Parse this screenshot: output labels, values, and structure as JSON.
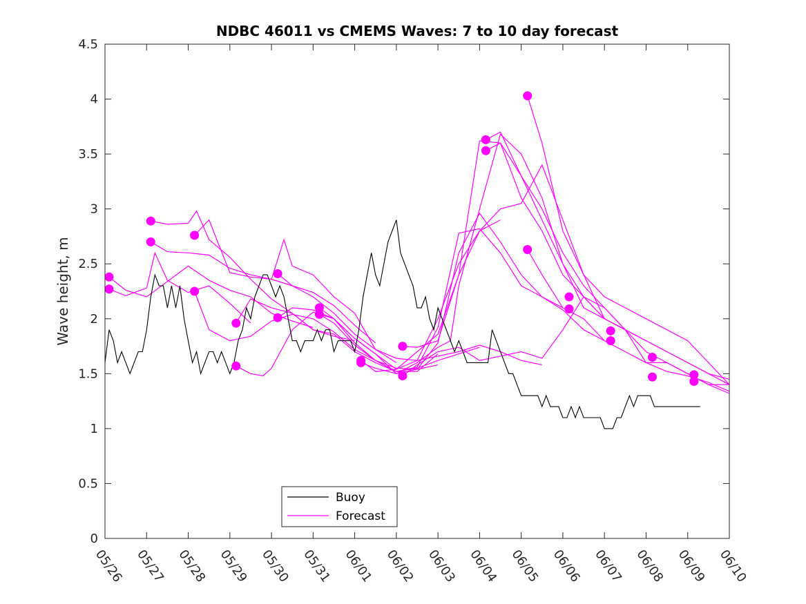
{
  "chart_data": {
    "type": "line",
    "title": "NDBC 46011 vs CMEMS Waves: 7 to 10 day forecast",
    "xlabel": "",
    "ylabel": "Wave height, m",
    "xlim": [
      "05/26",
      "06/10"
    ],
    "ylim": [
      0,
      4.5
    ],
    "yticks": [
      "0",
      "0.5",
      "1",
      "1.5",
      "2",
      "2.5",
      "3",
      "3.5",
      "4",
      "4.5"
    ],
    "xticks": [
      "05/26",
      "05/27",
      "05/28",
      "05/29",
      "05/30",
      "05/31",
      "06/01",
      "06/02",
      "06/03",
      "06/04",
      "06/05",
      "06/06",
      "06/07",
      "06/08",
      "06/09",
      "06/10"
    ],
    "grid": false,
    "legend": {
      "position": "bottom-center",
      "entries": [
        "Buoy",
        "Forecast"
      ]
    },
    "colors": {
      "Buoy": "#000000",
      "Forecast": "#ff00ff"
    },
    "series": [
      {
        "name": "Buoy",
        "x_days_since_0526": [
          0.0,
          0.1,
          0.2,
          0.3,
          0.4,
          0.5,
          0.6,
          0.7,
          0.8,
          0.9,
          1.0,
          1.1,
          1.2,
          1.3,
          1.4,
          1.5,
          1.6,
          1.7,
          1.8,
          1.9,
          2.0,
          2.1,
          2.2,
          2.3,
          2.4,
          2.5,
          2.6,
          2.7,
          2.8,
          2.9,
          3.0,
          3.1,
          3.2,
          3.3,
          3.4,
          3.5,
          3.6,
          3.7,
          3.8,
          3.9,
          4.0,
          4.1,
          4.2,
          4.3,
          4.4,
          4.5,
          4.6,
          4.7,
          4.8,
          4.9,
          5.0,
          5.1,
          5.2,
          5.3,
          5.4,
          5.5,
          5.6,
          5.7,
          5.8,
          5.9,
          6.0,
          6.1,
          6.2,
          6.3,
          6.4,
          6.5,
          6.6,
          6.7,
          6.8,
          6.9,
          7.0,
          7.1,
          7.2,
          7.3,
          7.4,
          7.5,
          7.6,
          7.7,
          7.8,
          7.9,
          8.0,
          8.1,
          8.2,
          8.3,
          8.4,
          8.5,
          8.6,
          8.7,
          8.8,
          8.9,
          9.0,
          9.1,
          9.2,
          9.3,
          9.4,
          9.5,
          9.6,
          9.7,
          9.8,
          9.9,
          10.0,
          10.1,
          10.2,
          10.3,
          10.4,
          10.5,
          10.6,
          10.7,
          10.8,
          10.9,
          11.0,
          11.1,
          11.2,
          11.3,
          11.4,
          11.5,
          11.6,
          11.7,
          11.8,
          11.9,
          12.0,
          12.1,
          12.2,
          12.3,
          12.4,
          12.5,
          12.6,
          12.7,
          12.8,
          12.9,
          13.0,
          13.1,
          13.2,
          13.3,
          13.4,
          13.5,
          13.6,
          13.7,
          13.8,
          13.9,
          14.0,
          14.1,
          14.2,
          14.3
        ],
        "values": [
          1.6,
          1.9,
          1.8,
          1.6,
          1.7,
          1.6,
          1.5,
          1.6,
          1.7,
          1.7,
          1.9,
          2.2,
          2.4,
          2.3,
          2.3,
          2.1,
          2.3,
          2.1,
          2.3,
          2.0,
          1.8,
          1.6,
          1.7,
          1.5,
          1.6,
          1.7,
          1.7,
          1.6,
          1.7,
          1.6,
          1.5,
          1.6,
          1.8,
          1.9,
          2.1,
          2.0,
          2.2,
          2.3,
          2.4,
          2.4,
          2.3,
          2.2,
          2.3,
          2.2,
          2.0,
          1.8,
          1.8,
          1.7,
          1.8,
          1.8,
          1.8,
          1.9,
          1.8,
          1.9,
          1.9,
          1.7,
          1.8,
          1.8,
          1.8,
          1.8,
          1.7,
          1.9,
          2.2,
          2.4,
          2.6,
          2.4,
          2.3,
          2.5,
          2.7,
          2.8,
          2.9,
          2.6,
          2.5,
          2.4,
          2.3,
          2.1,
          2.1,
          2.2,
          2.0,
          1.9,
          2.1,
          2.0,
          1.9,
          1.8,
          1.7,
          1.8,
          1.7,
          1.6,
          1.6,
          1.6,
          1.6,
          1.6,
          1.6,
          1.9,
          1.8,
          1.7,
          1.6,
          1.5,
          1.5,
          1.4,
          1.3,
          1.3,
          1.3,
          1.3,
          1.3,
          1.2,
          1.3,
          1.2,
          1.2,
          1.2,
          1.1,
          1.1,
          1.2,
          1.1,
          1.2,
          1.1,
          1.1,
          1.1,
          1.1,
          1.1,
          1.0,
          1.0,
          1.0,
          1.1,
          1.1,
          1.2,
          1.3,
          1.2,
          1.3,
          1.3,
          1.3,
          1.3,
          1.2,
          1.2,
          1.2,
          1.2,
          1.2,
          1.2,
          1.2,
          1.2,
          1.2,
          1.2,
          1.2,
          1.2
        ]
      },
      {
        "name": "Forecast",
        "runs": [
          {
            "x_days_since_0526": [
              0.1,
              0.5,
              1.0,
              1.5,
              2.0,
              2.5,
              3.0,
              3.5,
              4.0,
              4.5,
              5.0
            ],
            "values": [
              2.38,
              2.26,
              2.2,
              2.34,
              2.48,
              2.35,
              2.26,
              2.2,
              2.05,
              1.98,
              1.92
            ]
          },
          {
            "x_days_since_0526": [
              0.1,
              0.5,
              1.0,
              1.2,
              1.5,
              2.0,
              2.5,
              3.0,
              3.5
            ],
            "values": [
              2.27,
              2.21,
              2.28,
              2.6,
              2.35,
              2.24,
              2.3,
              2.14,
              1.96
            ]
          },
          {
            "x_days_since_0526": [
              1.1,
              1.5,
              2.0,
              2.2,
              2.5,
              3.0,
              3.5,
              4.0,
              4.5,
              5.0,
              5.5,
              6.0
            ],
            "values": [
              2.89,
              2.86,
              2.87,
              2.98,
              2.72,
              2.56,
              2.36,
              2.18,
              2.05,
              1.9,
              1.84,
              1.8
            ]
          },
          {
            "x_days_since_0526": [
              1.1,
              1.5,
              2.0,
              2.5,
              3.0,
              3.5,
              4.0,
              4.5,
              5.0,
              5.5,
              6.0,
              6.5
            ],
            "values": [
              2.7,
              2.61,
              2.6,
              2.58,
              2.46,
              2.4,
              2.36,
              2.3,
              2.24,
              2.12,
              1.94,
              1.78
            ]
          },
          {
            "x_days_since_0526": [
              2.15,
              2.5,
              3.0,
              3.5,
              4.0,
              4.3,
              4.5,
              5.0,
              5.5,
              6.0,
              6.5,
              7.0
            ],
            "values": [
              2.76,
              2.9,
              2.42,
              2.38,
              2.36,
              2.72,
              2.48,
              2.4,
              2.2,
              2.05,
              1.72,
              1.6
            ]
          },
          {
            "x_days_since_0526": [
              2.15,
              2.5,
              3.0,
              3.5,
              4.0,
              4.5,
              5.0,
              5.5,
              6.0,
              6.5,
              7.0,
              7.5,
              8.0
            ],
            "values": [
              2.25,
              1.9,
              1.8,
              1.84,
              1.98,
              2.04,
              2.0,
              1.88,
              1.72,
              1.62,
              1.55,
              1.54,
              1.58
            ]
          },
          {
            "x_days_since_0526": [
              3.15,
              3.5,
              4.0,
              4.5,
              5.0,
              5.5,
              6.0,
              6.5,
              7.0,
              7.5,
              8.0,
              8.5,
              9.0
            ],
            "values": [
              1.96,
              2.18,
              2.1,
              2.05,
              1.9,
              1.86,
              1.7,
              1.6,
              1.52,
              1.55,
              1.62,
              1.68,
              1.74
            ]
          },
          {
            "x_days_since_0526": [
              3.15,
              3.5,
              3.8,
              4.0,
              4.5,
              5.0,
              5.5,
              6.0,
              6.5,
              7.0,
              7.5,
              8.0
            ],
            "values": [
              1.57,
              1.5,
              1.48,
              1.55,
              1.9,
              2.06,
              2.0,
              1.78,
              1.62,
              1.52,
              1.52,
              1.68
            ]
          },
          {
            "x_days_since_0526": [
              4.15,
              4.5,
              5.0,
              5.5,
              6.0,
              6.5,
              7.0,
              7.5,
              8.0,
              8.5,
              9.0,
              9.5,
              10.0,
              10.5
            ],
            "values": [
              2.41,
              2.3,
              2.2,
              2.05,
              1.86,
              1.72,
              1.64,
              1.62,
              1.66,
              1.7,
              1.76,
              1.7,
              1.62,
              1.58
            ]
          },
          {
            "x_days_since_0526": [
              4.15,
              4.5,
              5.0,
              5.5,
              6.0,
              6.5,
              7.0,
              7.5,
              8.0,
              8.5,
              9.0,
              9.5
            ],
            "values": [
              2.01,
              2.1,
              2.08,
              2.0,
              1.82,
              1.68,
              1.54,
              1.62,
              2.0,
              2.5,
              2.8,
              2.9
            ]
          },
          {
            "x_days_since_0526": [
              5.15,
              5.5,
              6.0,
              6.5,
              7.0,
              7.5,
              8.0,
              8.5,
              9.0,
              9.5,
              10.0,
              10.5,
              11.0
            ],
            "values": [
              2.1,
              2.0,
              1.82,
              1.68,
              1.5,
              1.54,
              1.78,
              2.6,
              2.96,
              2.7,
              2.4,
              2.2,
              2.1
            ]
          },
          {
            "x_days_since_0526": [
              5.15,
              5.5,
              6.0,
              6.5,
              7.0,
              7.5,
              8.0,
              8.5,
              9.0,
              9.5,
              10.0,
              10.5,
              11.0,
              11.5,
              12.0
            ],
            "values": [
              2.04,
              1.96,
              1.76,
              1.62,
              1.52,
              1.56,
              1.92,
              2.78,
              2.82,
              2.6,
              2.3,
              2.2,
              2.08,
              1.9,
              1.8
            ]
          },
          {
            "x_days_since_0526": [
              6.15,
              6.5,
              7.0,
              7.5,
              8.0,
              8.3,
              8.5,
              9.0,
              9.5,
              10.0,
              10.5,
              11.0,
              11.5,
              12.0
            ],
            "values": [
              1.6,
              1.55,
              1.5,
              1.6,
              1.74,
              1.8,
              2.3,
              3.0,
              3.68,
              3.5,
              3.1,
              2.5,
              2.1,
              2.0
            ]
          },
          {
            "x_days_since_0526": [
              6.15,
              6.5,
              7.0,
              7.5,
              8.0,
              8.5,
              9.0,
              9.5,
              10.0,
              10.5,
              11.0,
              11.5,
              12.0,
              12.5
            ],
            "values": [
              1.62,
              1.52,
              1.54,
              1.7,
              1.86,
              2.4,
              3.62,
              3.6,
              3.1,
              2.8,
              2.4,
              2.2,
              2.0,
              1.9
            ]
          },
          {
            "x_days_since_0526": [
              7.15,
              7.5,
              8.0,
              8.5,
              9.0,
              9.5,
              10.0,
              10.5,
              11.0,
              11.5,
              12.0,
              12.5,
              13.0,
              13.5,
              14.0,
              14.5,
              15.0
            ],
            "values": [
              1.75,
              1.74,
              1.8,
              2.4,
              2.8,
              3.0,
              3.05,
              3.4,
              2.9,
              2.4,
              2.0,
              1.9,
              1.7,
              1.6,
              1.5,
              1.4,
              1.4
            ]
          },
          {
            "x_days_since_0526": [
              7.15,
              7.5,
              8.0,
              8.5,
              9.0,
              9.5,
              10.0,
              10.5,
              11.0,
              11.5,
              12.0,
              12.5,
              13.0,
              13.5,
              14.0,
              14.5,
              15.0
            ],
            "values": [
              1.48,
              1.58,
              1.7,
              1.74,
              1.62,
              1.66,
              1.7,
              1.64,
              1.9,
              2.2,
              2.1,
              1.9,
              1.6,
              1.6,
              1.5,
              1.4,
              1.32
            ]
          },
          {
            "x_days_since_0526": [
              9.15,
              9.5,
              10.0,
              10.5,
              11.0,
              11.5,
              12.0,
              12.5,
              13.0,
              13.5,
              14.0,
              14.5,
              15.0
            ],
            "values": [
              3.63,
              3.7,
              3.3,
              2.9,
              2.5,
              2.2,
              2.0,
              1.9,
              1.8,
              1.7,
              1.6,
              1.5,
              1.45
            ]
          },
          {
            "x_days_since_0526": [
              9.15,
              9.5,
              10.0,
              10.5,
              11.0,
              11.5,
              12.0,
              12.5,
              13.0,
              13.5,
              14.0,
              14.5,
              15.0
            ],
            "values": [
              3.53,
              3.6,
              3.3,
              3.0,
              2.6,
              2.3,
              2.1,
              1.9,
              1.8,
              1.7,
              1.6,
              1.5,
              1.4
            ]
          },
          {
            "x_days_since_0526": [
              10.15,
              10.5,
              11.0,
              11.5,
              12.0,
              12.5,
              13.0,
              13.5,
              14.0,
              14.5,
              15.0
            ],
            "values": [
              4.03,
              3.6,
              2.8,
              2.4,
              2.2,
              2.1,
              2.0,
              1.9,
              1.8,
              1.6,
              1.4
            ]
          },
          {
            "x_days_since_0526": [
              10.15,
              10.5,
              11.0,
              11.5,
              12.0,
              12.5,
              13.0,
              13.5,
              14.0,
              14.5,
              15.0
            ],
            "values": [
              2.63,
              2.4,
              2.1,
              2.0,
              1.8,
              1.7,
              1.6,
              1.52,
              1.48,
              1.42,
              1.34
            ]
          }
        ],
        "start_markers": [
          {
            "x": 0.1,
            "y": 2.38
          },
          {
            "x": 0.1,
            "y": 2.27
          },
          {
            "x": 1.1,
            "y": 2.89
          },
          {
            "x": 1.1,
            "y": 2.7
          },
          {
            "x": 2.15,
            "y": 2.76
          },
          {
            "x": 2.15,
            "y": 2.25
          },
          {
            "x": 3.15,
            "y": 1.96
          },
          {
            "x": 3.15,
            "y": 1.57
          },
          {
            "x": 4.15,
            "y": 2.41
          },
          {
            "x": 4.15,
            "y": 2.01
          },
          {
            "x": 5.15,
            "y": 2.1
          },
          {
            "x": 5.15,
            "y": 2.04
          },
          {
            "x": 6.15,
            "y": 1.62
          },
          {
            "x": 6.15,
            "y": 1.6
          },
          {
            "x": 7.15,
            "y": 1.75
          },
          {
            "x": 7.15,
            "y": 1.48
          },
          {
            "x": 9.15,
            "y": 3.63
          },
          {
            "x": 9.15,
            "y": 3.53
          },
          {
            "x": 10.15,
            "y": 4.03
          },
          {
            "x": 10.15,
            "y": 2.63
          },
          {
            "x": 11.15,
            "y": 2.2
          },
          {
            "x": 11.15,
            "y": 2.09
          },
          {
            "x": 12.15,
            "y": 1.89
          },
          {
            "x": 12.15,
            "y": 1.8
          },
          {
            "x": 13.15,
            "y": 1.65
          },
          {
            "x": 13.15,
            "y": 1.47
          },
          {
            "x": 14.15,
            "y": 1.49
          },
          {
            "x": 14.15,
            "y": 1.43
          }
        ]
      }
    ]
  }
}
